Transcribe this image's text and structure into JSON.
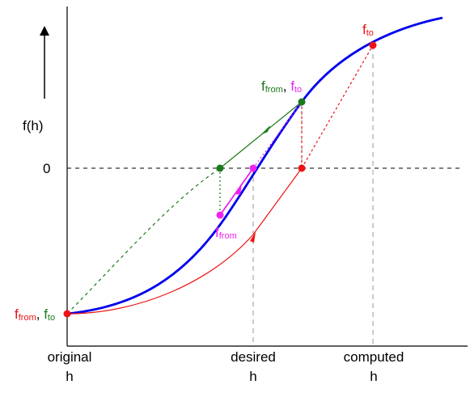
{
  "axis": {
    "y_label": "f(h)",
    "zero_label": "0",
    "x_ticks": [
      {
        "line1": "original",
        "line2": "h"
      },
      {
        "line1": "desired",
        "line2": "h"
      },
      {
        "line1": "computed",
        "line2": "h"
      }
    ]
  },
  "annotations": {
    "top_right": {
      "base": "f",
      "sub": "to"
    },
    "middle_green": {
      "f1": "f",
      "s1": "from",
      "sep": ", ",
      "f2": "f",
      "s2": "to"
    },
    "magenta_point": {
      "base": "f",
      "sub": "from"
    },
    "origin": {
      "f1": "f",
      "s1": "from",
      "sep": ", ",
      "f2": "f",
      "s2": "to"
    }
  },
  "colors": {
    "curve": "#0000ee",
    "red": "#ee1111",
    "green": "#1a7a1a",
    "magenta": "#ee22ee",
    "axis": "#000000",
    "guide": "#999999"
  }
}
